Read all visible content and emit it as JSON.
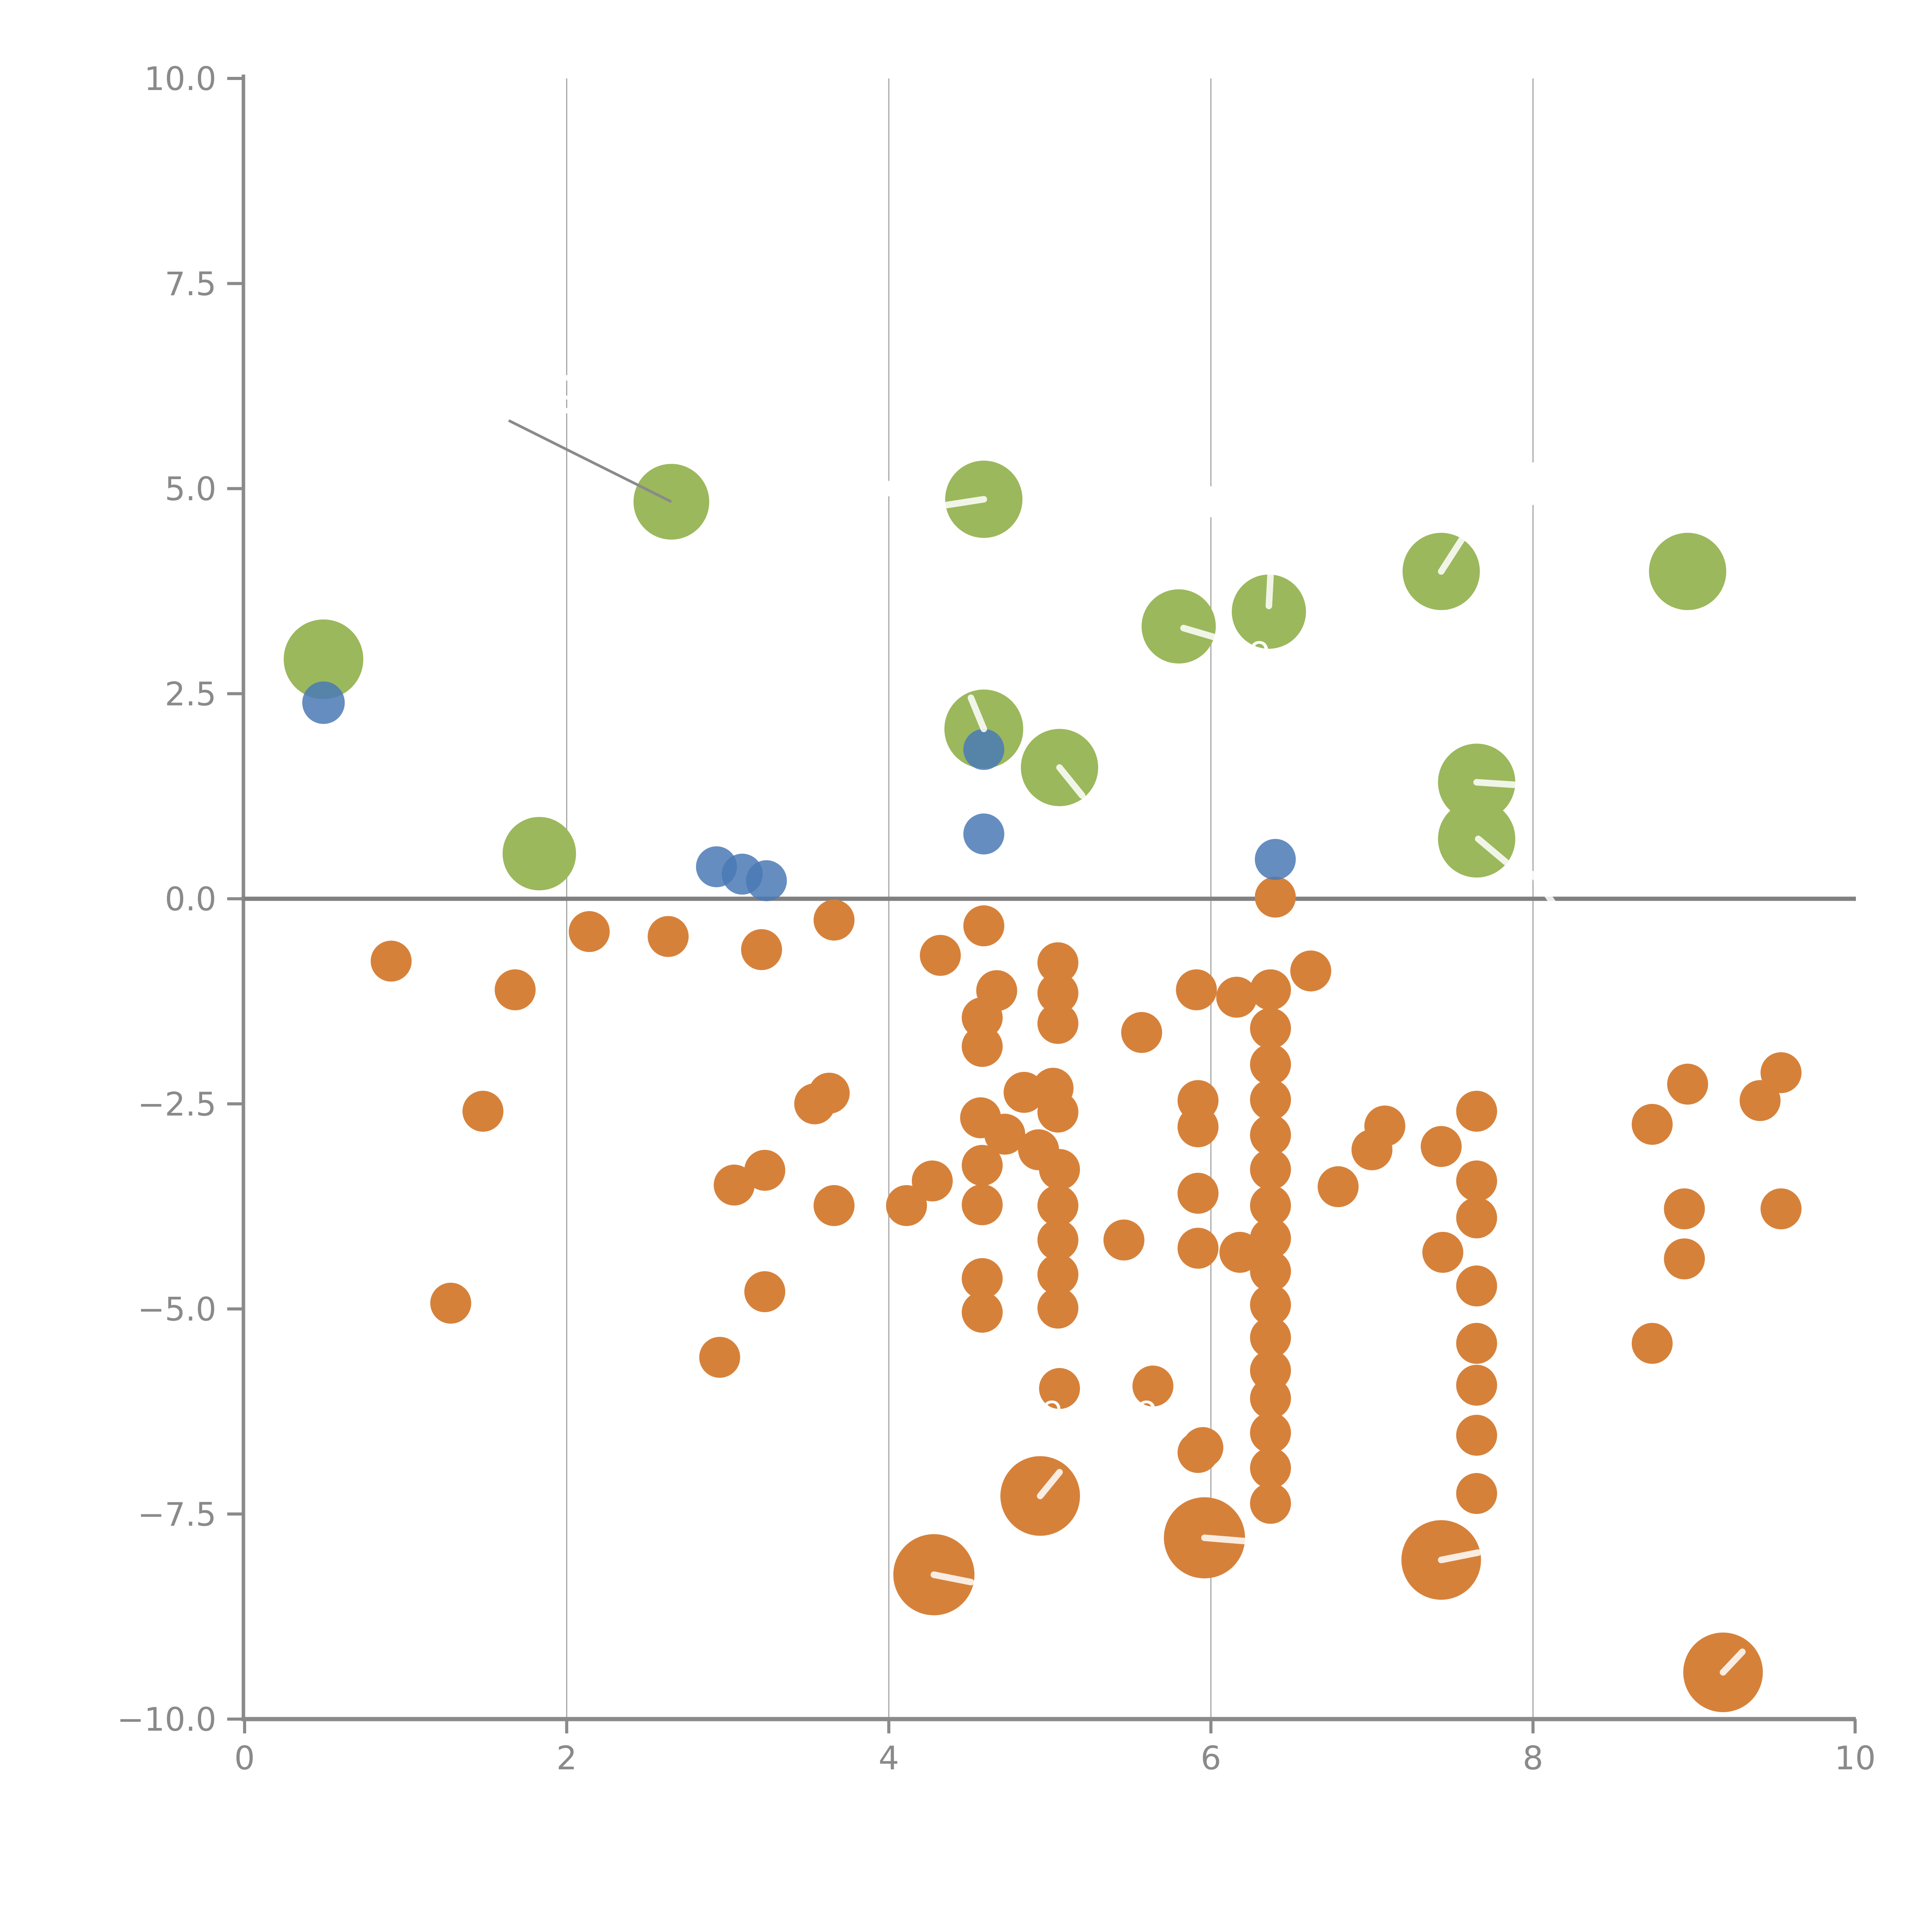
{
  "chart_data": {
    "type": "scatter",
    "title": "",
    "xlabel": "",
    "ylabel": "",
    "xlim": [
      0,
      10
    ],
    "ylim": [
      -10,
      10
    ],
    "grid": "vertical-only",
    "legend": "none",
    "x_ticks": [
      {
        "value": 0,
        "label": "0"
      },
      {
        "value": 2,
        "label": "2"
      },
      {
        "value": 4,
        "label": "4"
      },
      {
        "value": 6,
        "label": "6"
      },
      {
        "value": 8,
        "label": "8"
      },
      {
        "value": 10,
        "label": "10"
      }
    ],
    "y_ticks": [
      {
        "value": 10,
        "label": "10.0"
      },
      {
        "value": 7.5,
        "label": "7.5"
      },
      {
        "value": 5,
        "label": "5.0"
      },
      {
        "value": 2.5,
        "label": "2.5"
      },
      {
        "value": 0,
        "label": "0.0"
      },
      {
        "value": -2.5,
        "label": "−2.5"
      },
      {
        "value": -5,
        "label": "−5.0"
      },
      {
        "value": -7.5,
        "label": "−7.5"
      },
      {
        "value": -10,
        "label": "−10.0"
      }
    ],
    "vertical_gridlines": [
      2,
      4,
      6,
      8
    ],
    "zero_line_y": 0,
    "series": [
      {
        "name": "green-bubbles",
        "color": "#9BB85C",
        "opacity": 1,
        "default_r": 100,
        "points": [
          [
            0.49,
            2.92,
            103
          ],
          [
            1.83,
            0.55,
            95
          ],
          [
            2.65,
            4.84,
            98
          ],
          [
            4.59,
            4.87,
            100
          ],
          [
            4.59,
            2.07,
            102
          ],
          [
            5.06,
            1.6,
            100
          ],
          [
            5.8,
            3.32,
            96
          ],
          [
            6.36,
            3.5,
            96
          ],
          [
            7.43,
            3.99,
            100
          ],
          [
            7.65,
            1.42,
            100
          ],
          [
            7.65,
            0.73,
            100
          ],
          [
            8.96,
            3.99,
            100
          ]
        ]
      },
      {
        "name": "orange-small-dots",
        "color": "#D6813A",
        "opacity": 1,
        "default_r": 53,
        "points": [
          [
            0.91,
            -0.76
          ],
          [
            1.68,
            -1.11
          ],
          [
            1.48,
            -2.59
          ],
          [
            1.28,
            -4.93
          ],
          [
            2.14,
            -0.4
          ],
          [
            2.63,
            -0.46
          ],
          [
            3.21,
            -0.62
          ],
          [
            2.95,
            -5.59
          ],
          [
            3.04,
            -3.49
          ],
          [
            3.23,
            -3.31
          ],
          [
            3.23,
            -4.79
          ],
          [
            3.54,
            -2.5
          ],
          [
            3.63,
            -2.37
          ],
          [
            3.66,
            -0.26
          ],
          [
            3.66,
            -3.74
          ],
          [
            4.11,
            -3.74
          ],
          [
            4.27,
            -3.44
          ],
          [
            4.32,
            -0.69
          ],
          [
            4.59,
            -0.33
          ],
          [
            4.67,
            -1.12
          ],
          [
            4.58,
            -1.45
          ],
          [
            4.58,
            -1.8
          ],
          [
            4.84,
            -2.36
          ],
          [
            5.02,
            -2.31
          ],
          [
            5.05,
            -2.6
          ],
          [
            4.93,
            -3.06
          ],
          [
            5.06,
            -3.3
          ],
          [
            4.57,
            -2.67
          ],
          [
            4.72,
            -2.87
          ],
          [
            4.58,
            -3.25
          ],
          [
            4.58,
            -3.73
          ],
          [
            4.58,
            -4.63
          ],
          [
            4.58,
            -5.04
          ],
          [
            5.05,
            -0.78
          ],
          [
            5.05,
            -1.15
          ],
          [
            5.05,
            -1.52
          ],
          [
            5.05,
            -3.74
          ],
          [
            5.05,
            -4.16
          ],
          [
            5.05,
            -4.58
          ],
          [
            5.05,
            -4.99
          ],
          [
            5.46,
            -4.16
          ],
          [
            5.57,
            -1.63
          ],
          [
            5.06,
            -5.97
          ],
          [
            5.64,
            -5.94
          ],
          [
            5.95,
            -6.69
          ],
          [
            5.91,
            -1.11
          ],
          [
            5.92,
            -2.46
          ],
          [
            5.92,
            -2.78
          ],
          [
            5.92,
            -3.59
          ],
          [
            5.92,
            -4.26
          ],
          [
            5.92,
            -6.75
          ],
          [
            6.16,
            -1.2
          ],
          [
            6.18,
            -4.31
          ],
          [
            6.37,
            -1.11
          ],
          [
            6.37,
            -1.58
          ],
          [
            6.37,
            -2.02
          ],
          [
            6.37,
            -2.45
          ],
          [
            6.37,
            -2.88
          ],
          [
            6.37,
            -3.3
          ],
          [
            6.37,
            -3.74
          ],
          [
            6.37,
            -4.14
          ],
          [
            6.37,
            -4.54
          ],
          [
            6.37,
            -4.95
          ],
          [
            6.37,
            -5.35
          ],
          [
            6.37,
            -5.75
          ],
          [
            6.37,
            -6.09
          ],
          [
            6.37,
            -6.51
          ],
          [
            6.37,
            -6.94
          ],
          [
            6.37,
            -7.37
          ],
          [
            6.4,
            0.02
          ],
          [
            6.62,
            -0.88
          ],
          [
            6.79,
            -3.51
          ],
          [
            7.0,
            -3.06
          ],
          [
            7.08,
            -2.77
          ],
          [
            7.43,
            -3.02
          ],
          [
            7.65,
            -2.59
          ],
          [
            7.65,
            -3.44
          ],
          [
            7.65,
            -3.89
          ],
          [
            7.44,
            -4.31
          ],
          [
            7.65,
            -4.72
          ],
          [
            7.65,
            -5.42
          ],
          [
            7.65,
            -5.93
          ],
          [
            7.65,
            -6.54
          ],
          [
            7.65,
            -7.25
          ],
          [
            8.74,
            -2.75
          ],
          [
            8.96,
            -2.26
          ],
          [
            9.41,
            -2.46
          ],
          [
            9.54,
            -2.12
          ],
          [
            8.94,
            -3.78
          ],
          [
            9.54,
            -3.78
          ],
          [
            8.94,
            -4.39
          ],
          [
            8.74,
            -5.42
          ]
        ]
      },
      {
        "name": "orange-large-bubbles",
        "color": "#D6813A",
        "opacity": 1,
        "default_r": 103,
        "points": [
          [
            4.28,
            -8.24,
            105
          ],
          [
            4.94,
            -7.28,
            103
          ],
          [
            5.96,
            -7.79,
            105
          ],
          [
            7.43,
            -8.06,
            103
          ],
          [
            9.18,
            -9.43,
            103
          ]
        ]
      },
      {
        "name": "blue-dots",
        "color": "#4A79B5",
        "opacity": 0.85,
        "default_r": 53,
        "points": [
          [
            0.49,
            2.39,
            55
          ],
          [
            2.93,
            0.39
          ],
          [
            3.09,
            0.3
          ],
          [
            3.24,
            0.22
          ],
          [
            4.59,
            1.82
          ],
          [
            4.59,
            0.79
          ],
          [
            6.4,
            0.48
          ]
        ]
      }
    ],
    "annotations": {
      "gray_leader_line": {
        "from": [
          1.64,
          5.83
        ],
        "to": [
          2.65,
          4.84
        ],
        "color": "#8A8A8A",
        "width": 7
      },
      "white_leader_lines": [
        [
          4.36,
          4.8,
          4.59,
          4.87
        ],
        [
          4.51,
          2.45,
          4.59,
          2.07
        ],
        [
          5.06,
          1.6,
          5.2,
          1.26
        ],
        [
          5.83,
          3.3,
          6.02,
          3.19
        ],
        [
          6.37,
          3.94,
          6.36,
          3.57
        ],
        [
          7.43,
          3.99,
          7.6,
          4.51
        ],
        [
          7.65,
          1.42,
          7.88,
          1.39
        ],
        [
          7.66,
          0.73,
          7.83,
          0.45
        ],
        [
          4.28,
          -8.24,
          4.51,
          -8.33
        ],
        [
          4.94,
          -7.28,
          5.06,
          -6.99
        ],
        [
          5.96,
          -7.79,
          6.21,
          -7.83
        ],
        [
          7.43,
          -8.06,
          7.66,
          -7.97
        ],
        [
          9.18,
          -9.43,
          9.3,
          -9.18
        ],
        [
          8.0,
          0.3,
          8.12,
          -0.04
        ]
      ],
      "white_text_fragments": [
        {
          "text": "e",
          "x": 5.01,
          "y": -6.36
        },
        {
          "text": "o",
          "x": 5.6,
          "y": -6.36
        },
        {
          "text": "o",
          "x": 6.3,
          "y": 2.9
        }
      ],
      "white_gridline_dashes": [
        {
          "x": 2,
          "y": 6.35,
          "h": 14
        },
        {
          "x": 2,
          "y": 6.11,
          "h": 10
        },
        {
          "x": 2,
          "y": 5.95,
          "h": 14
        },
        {
          "x": 4,
          "y": 5.0,
          "h": 40
        },
        {
          "x": 6,
          "y": 4.84,
          "h": 80
        },
        {
          "x": 8,
          "y": 5.06,
          "h": 110
        }
      ]
    },
    "style": {
      "background": "#FFFFFF",
      "axis_color": "#8A8A8A",
      "zero_line_color": "#808080",
      "gridline_color": "#A6A6A6",
      "tick_label_color": "#8A8A8A",
      "leader_white": "#FFFFFF",
      "tick_label_font_px": 84,
      "gridline_width": 3,
      "spine_width": 9,
      "zero_line_width": 11,
      "white_line_width": 17
    }
  }
}
